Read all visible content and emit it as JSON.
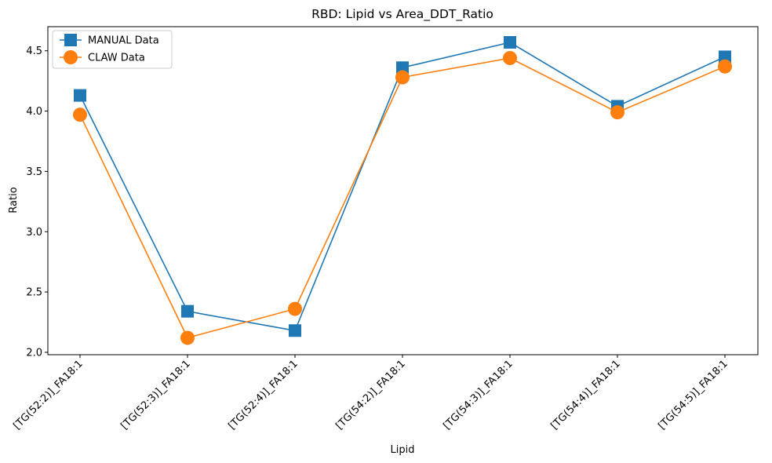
{
  "chart_data": {
    "type": "line",
    "title": "RBD: Lipid vs Area_DDT_Ratio",
    "xlabel": "Lipid",
    "ylabel": "Ratio",
    "categories": [
      "[TG(52:2)]_FA18:1",
      "[TG(52:3)]_FA18:1",
      "[TG(52:4)]_FA18:1",
      "[TG(54:2)]_FA18:1",
      "[TG(54:3)]_FA18:1",
      "[TG(54:4)]_FA18:1",
      "[TG(54:5)]_FA18:1"
    ],
    "ylim": [
      1.98,
      4.7
    ],
    "yticks": [
      2.0,
      2.5,
      3.0,
      3.5,
      4.0,
      4.5
    ],
    "ytick_labels": [
      "2.0",
      "2.5",
      "3.0",
      "3.5",
      "4.0",
      "4.5"
    ],
    "grid": false,
    "legend_position": "upper-left",
    "series": [
      {
        "name": "MANUAL Data",
        "marker": "square",
        "color": "#1f77b4",
        "values": [
          4.13,
          2.34,
          2.18,
          4.36,
          4.57,
          4.04,
          4.45
        ]
      },
      {
        "name": "CLAW Data",
        "marker": "circle",
        "color": "#ff7f0e",
        "values": [
          3.97,
          2.12,
          2.36,
          4.28,
          4.44,
          3.99,
          4.37
        ]
      }
    ]
  }
}
